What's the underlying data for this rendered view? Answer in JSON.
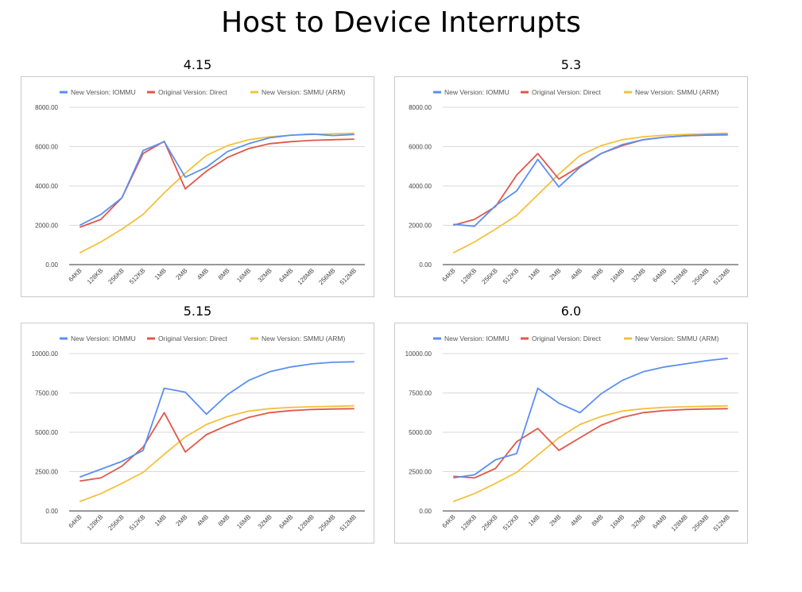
{
  "title": "Host to Device Interrupts",
  "colors": {
    "iommu": "#5b8ff0",
    "direct": "#e0574a",
    "smmu": "#f4c13b",
    "grid": "#d9d9d9",
    "axis": "#333333"
  },
  "chart_data": [
    {
      "type": "line",
      "title": "4.15",
      "categories": [
        "64KB",
        "128KB",
        "256KB",
        "512KB",
        "1MB",
        "2MB",
        "4MB",
        "8MB",
        "16MB",
        "32MB",
        "64MB",
        "128MB",
        "256MB",
        "512MB"
      ],
      "ylim": [
        0,
        8000
      ],
      "yticks": [
        "0.00",
        "2000.00",
        "4000.00",
        "6000.00",
        "8000.00"
      ],
      "ytick_values": [
        0,
        2000,
        4000,
        6000,
        8000
      ],
      "legend_position": "top",
      "grid": true,
      "series": [
        {
          "name": "New Version: IOMMU",
          "color": "#5b8ff0",
          "values": [
            2000,
            2550,
            3400,
            5800,
            6250,
            4450,
            4950,
            5750,
            6150,
            6450,
            6580,
            6640,
            6560,
            6620
          ]
        },
        {
          "name": "Original Version: Direct",
          "color": "#e0574a",
          "values": [
            1900,
            2300,
            3400,
            5650,
            6270,
            3850,
            4750,
            5450,
            5900,
            6150,
            6250,
            6320,
            6350,
            6380
          ]
        },
        {
          "name": "New Version: SMMU (ARM)",
          "color": "#f4c13b",
          "values": [
            600,
            1150,
            1800,
            2550,
            3650,
            4650,
            5550,
            6050,
            6350,
            6500,
            6580,
            6620,
            6650,
            6680
          ]
        }
      ]
    },
    {
      "type": "line",
      "title": "5.3",
      "categories": [
        "64KB",
        "128KB",
        "256KB",
        "512KB",
        "1MB",
        "2MB",
        "4MB",
        "8MB",
        "16MB",
        "32MB",
        "64MB",
        "128MB",
        "256MB",
        "512MB"
      ],
      "ylim": [
        0,
        8000
      ],
      "yticks": [
        "0.00",
        "2000.00",
        "4000.00",
        "6000.00",
        "8000.00"
      ],
      "ytick_values": [
        0,
        2000,
        4000,
        6000,
        8000
      ],
      "legend_position": "top",
      "grid": true,
      "series": [
        {
          "name": "New Version: IOMMU",
          "color": "#5b8ff0",
          "values": [
            2050,
            1950,
            3000,
            3750,
            5350,
            3950,
            4950,
            5650,
            6100,
            6350,
            6480,
            6550,
            6600,
            6620
          ]
        },
        {
          "name": "Original Version: Direct",
          "color": "#e0574a",
          "values": [
            2000,
            2300,
            2950,
            4550,
            5650,
            4350,
            5000,
            5650,
            6050,
            6350,
            6480,
            6550,
            6580,
            6600
          ]
        },
        {
          "name": "New Version: SMMU (ARM)",
          "color": "#f4c13b",
          "values": [
            600,
            1150,
            1800,
            2500,
            3550,
            4600,
            5550,
            6050,
            6350,
            6500,
            6580,
            6620,
            6650,
            6680
          ]
        }
      ]
    },
    {
      "type": "line",
      "title": "5.15",
      "categories": [
        "64KB",
        "128KB",
        "256KB",
        "512KB",
        "1MB",
        "2MB",
        "4MB",
        "8MB",
        "16MB",
        "32MB",
        "64MB",
        "128MB",
        "256MB",
        "512MB"
      ],
      "ylim": [
        0,
        10000
      ],
      "yticks": [
        "0.00",
        "2500.00",
        "5000.00",
        "7500.00",
        "10000.00"
      ],
      "ytick_values": [
        0,
        2500,
        5000,
        7500,
        10000
      ],
      "legend_position": "top",
      "grid": true,
      "series": [
        {
          "name": "New Version: IOMMU",
          "color": "#5b8ff0",
          "values": [
            2150,
            2650,
            3150,
            3850,
            7800,
            7550,
            6150,
            7400,
            8300,
            8850,
            9150,
            9350,
            9450,
            9480
          ]
        },
        {
          "name": "Original Version: Direct",
          "color": "#e0574a",
          "values": [
            1900,
            2100,
            2850,
            4050,
            6250,
            3750,
            4850,
            5450,
            5950,
            6250,
            6380,
            6450,
            6480,
            6500
          ]
        },
        {
          "name": "New Version: SMMU (ARM)",
          "color": "#f4c13b",
          "values": [
            600,
            1100,
            1750,
            2450,
            3600,
            4700,
            5500,
            6000,
            6350,
            6500,
            6580,
            6620,
            6650,
            6680
          ]
        }
      ]
    },
    {
      "type": "line",
      "title": "6.0",
      "categories": [
        "64KB",
        "128KB",
        "256KB",
        "512KB",
        "1MB",
        "2MB",
        "4MB",
        "8MB",
        "16MB",
        "32MB",
        "64MB",
        "128MB",
        "256MB",
        "512MB"
      ],
      "ylim": [
        0,
        10000
      ],
      "yticks": [
        "0.00",
        "2500.00",
        "5000.00",
        "7500.00",
        "10000.00"
      ],
      "ytick_values": [
        0,
        2500,
        5000,
        7500,
        10000
      ],
      "legend_position": "top",
      "grid": true,
      "series": [
        {
          "name": "New Version: IOMMU",
          "color": "#5b8ff0",
          "values": [
            2100,
            2300,
            3250,
            3650,
            7800,
            6850,
            6250,
            7450,
            8300,
            8850,
            9150,
            9350,
            9550,
            9700
          ]
        },
        {
          "name": "Original Version: Direct",
          "color": "#e0574a",
          "values": [
            2200,
            2100,
            2700,
            4400,
            5250,
            3850,
            4650,
            5450,
            5950,
            6250,
            6380,
            6450,
            6480,
            6500
          ]
        },
        {
          "name": "New Version: SMMU (ARM)",
          "color": "#f4c13b",
          "values": [
            600,
            1100,
            1750,
            2450,
            3550,
            4650,
            5500,
            6000,
            6350,
            6500,
            6580,
            6620,
            6650,
            6680
          ]
        }
      ]
    }
  ]
}
